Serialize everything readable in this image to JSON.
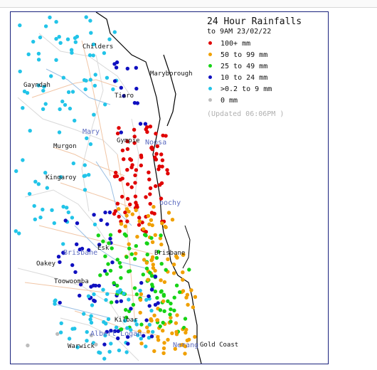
{
  "title": "24 Hour Rainfalls",
  "subtitle": "to 9AM 23/02/22",
  "legend": [
    {
      "label": "100+ mm",
      "color": "#e00000"
    },
    {
      "label": "50  to 99 mm",
      "color": "#f0a000"
    },
    {
      "label": "25  to 49 mm",
      "color": "#16d316"
    },
    {
      "label": "10  to 24 mm",
      "color": "#1010c0"
    },
    {
      "label": ">0.2 to 9 mm",
      "color": "#22c4e8"
    },
    {
      "label": "0 mm",
      "color": "#bdbdbd"
    }
  ],
  "updated": "(Updated 06:06PM  )",
  "places": {
    "childers": "Childers",
    "gayndah": "Gayndah",
    "maryborough": "Maryborough",
    "tiaro": "Tiaro",
    "murgon": "Murgon",
    "gympie": "Gympie",
    "kingaroy": "Kingaroy",
    "esk": "Esk",
    "oakey": "Oakey",
    "brisbane": "Brisbane",
    "toowoomba": "Toowoomba",
    "kilbar": "Kilbar",
    "warwick": "Warwick",
    "gold_coast": "Gold Coast"
  },
  "regions": {
    "mary": "Mary",
    "noosa": "Noosa",
    "maroochy": "oochy",
    "brisbane_river": "Brisbane",
    "albert_logan": "Albert Logan",
    "nerang": "Nerang"
  }
}
